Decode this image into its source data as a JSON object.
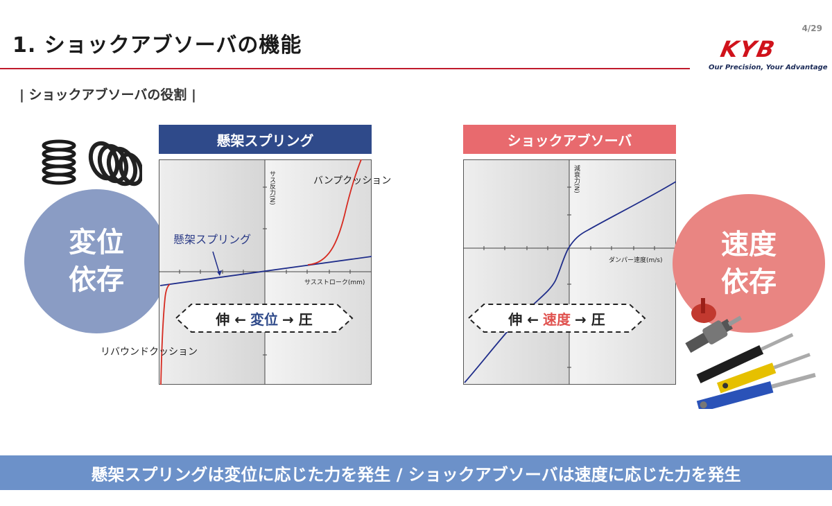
{
  "page_number": "4/29",
  "title": "1. ショックアブソーバの機能",
  "logo": {
    "mark": "KYB",
    "tagline": "Our Precision, Your Advantage"
  },
  "subtitle": "| ショックアブソーバの役割 |",
  "spring_panel": {
    "header": "懸架スプリング",
    "circle_line1": "変位",
    "circle_line2": "依存",
    "y_axis_label": "サス反力(N)",
    "x_axis_label": "サスストローク(mm)",
    "bump_label": "バンプクッション",
    "rebound_label": "リバウンドクッション",
    "spring_label": "懸架スプリング",
    "arrow_left": "伸 ←",
    "arrow_keyword": "変位",
    "arrow_right": "→ 圧"
  },
  "damper_panel": {
    "header": "ショックアブソーバ",
    "circle_line1": "速度",
    "circle_line2": "依存",
    "y_axis_label": "減衰力(N)",
    "x_axis_label": "ダンパー速度(m/s)",
    "arrow_left": "伸 ←",
    "arrow_keyword": "速度",
    "arrow_right": "→ 圧"
  },
  "banner": "懸架スプリングは変位に応じた力を発生 / ショックアブソーバは速度に応じた力を発生",
  "colors": {
    "accent_red": "#c0192b",
    "spring_blue": "#2f4a8a",
    "damper_pink": "#e86a6e",
    "banner_blue": "#6c91c9",
    "curve_red": "#d62a20",
    "curve_navy": "#1f2d8a"
  },
  "icons": {
    "coil_spring": "coil-spring-icon",
    "shock_absorbers": "shock-absorber-icon"
  }
}
